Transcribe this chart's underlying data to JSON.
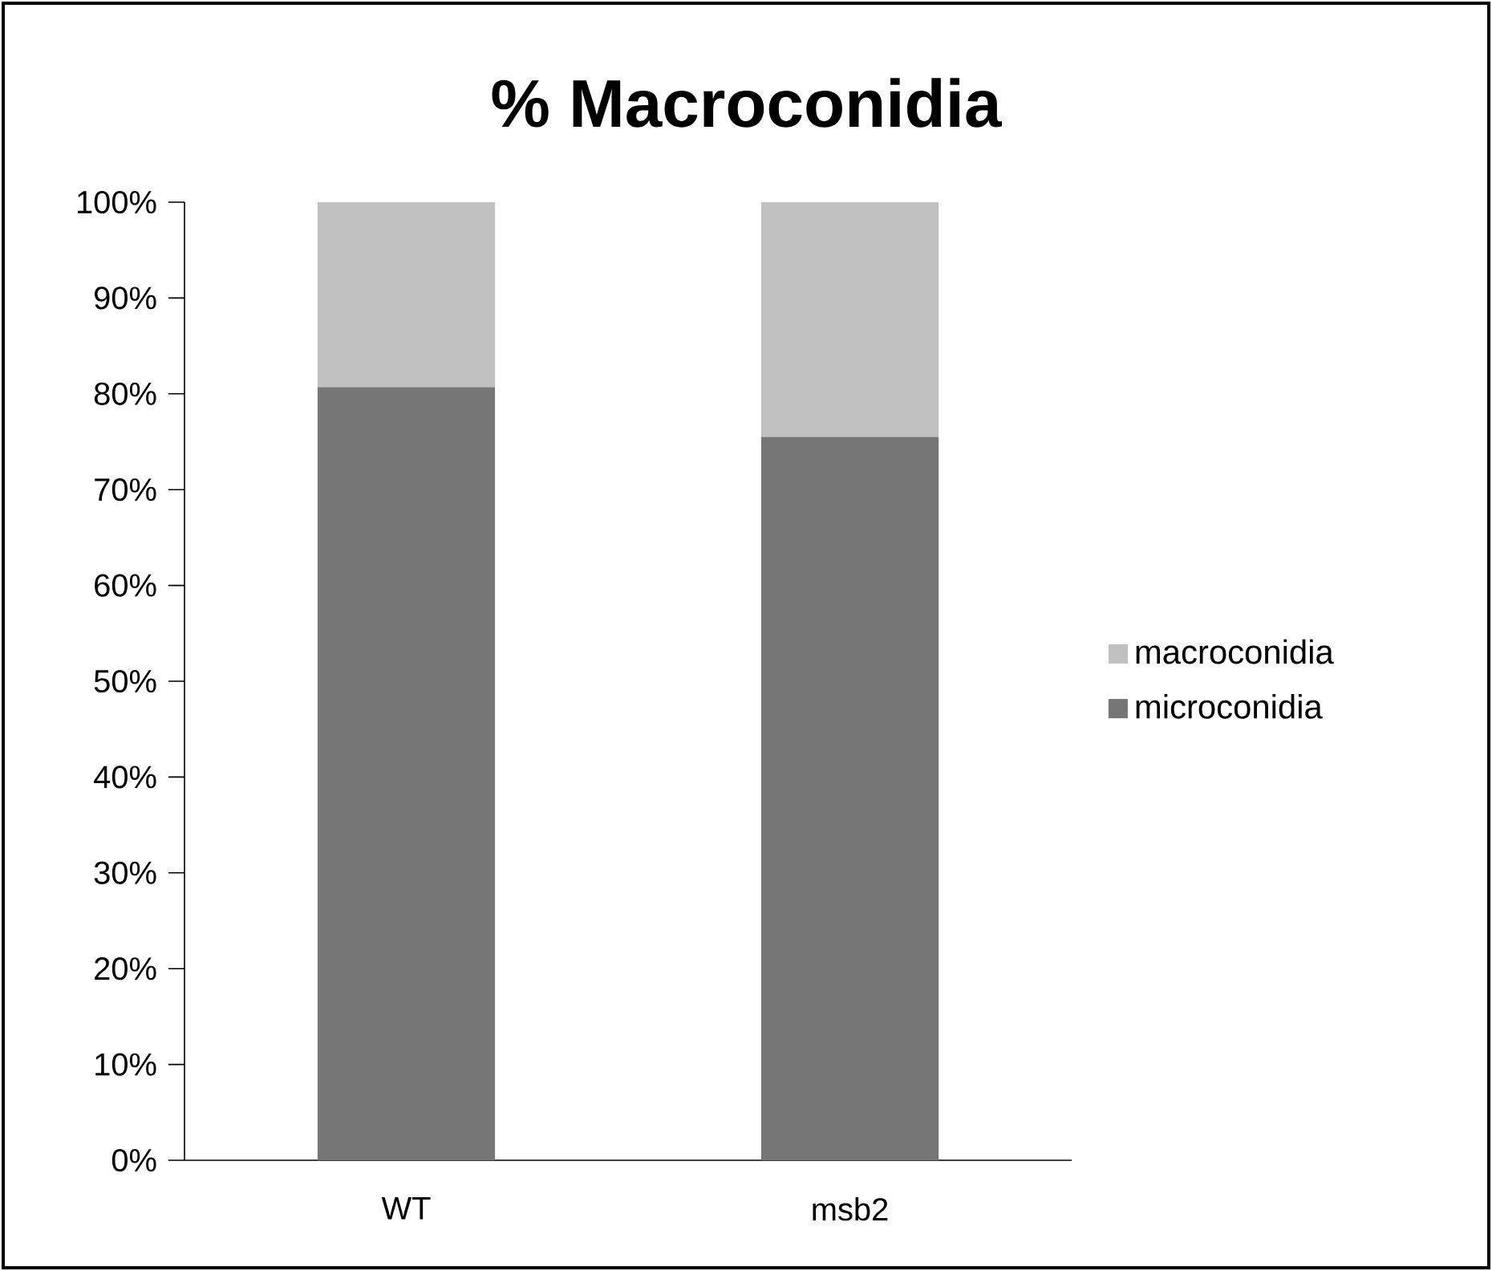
{
  "chart_data": {
    "type": "bar",
    "title": "% Macroconidia",
    "categories": [
      "WT",
      "msb2"
    ],
    "stacked": true,
    "series": [
      {
        "name": "microconidia",
        "color": "#767676",
        "values": [
          80.7,
          75.5
        ]
      },
      {
        "name": "macroconidia",
        "color": "#c0c0c0",
        "values": [
          19.3,
          24.5
        ]
      }
    ],
    "ylim": [
      0,
      100
    ],
    "yticks": [
      {
        "value": 0,
        "label": "0%"
      },
      {
        "value": 10,
        "label": "10%"
      },
      {
        "value": 20,
        "label": "20%"
      },
      {
        "value": 30,
        "label": "30%"
      },
      {
        "value": 40,
        "label": "40%"
      },
      {
        "value": 50,
        "label": "50%"
      },
      {
        "value": 60,
        "label": "60%"
      },
      {
        "value": 70,
        "label": "70%"
      },
      {
        "value": 80,
        "label": "80%"
      },
      {
        "value": 90,
        "label": "90%"
      },
      {
        "value": 100,
        "label": "100%"
      }
    ],
    "grid": false,
    "legend": "right"
  }
}
